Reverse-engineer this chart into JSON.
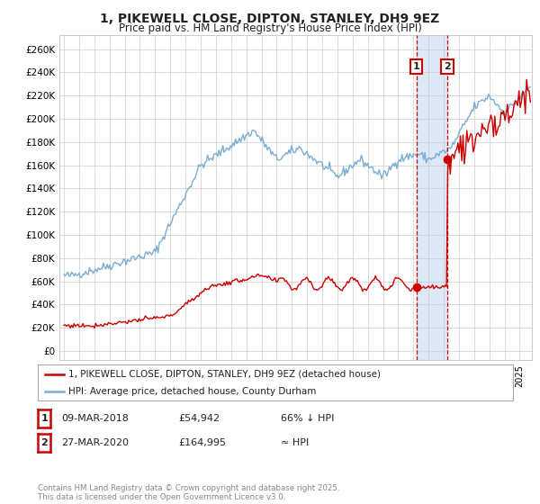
{
  "title": "1, PIKEWELL CLOSE, DIPTON, STANLEY, DH9 9EZ",
  "subtitle": "Price paid vs. HM Land Registry's House Price Index (HPI)",
  "title_fontsize": 10,
  "subtitle_fontsize": 8.5,
  "background_color": "#ffffff",
  "plot_bg_color": "#ffffff",
  "grid_color": "#cccccc",
  "hpi_color": "#7aadd4",
  "red_color": "#cc0000",
  "highlight_color": "#dce8f5",
  "sale1_date": 2018.19,
  "sale1_price": 54942,
  "sale1_label": "1",
  "sale2_date": 2020.23,
  "sale2_price": 164995,
  "sale2_label": "2",
  "yticks": [
    0,
    20000,
    40000,
    60000,
    80000,
    100000,
    120000,
    140000,
    160000,
    180000,
    200000,
    220000,
    240000,
    260000
  ],
  "ylim": [
    -8000,
    272000
  ],
  "xlim_start": 1994.7,
  "xlim_end": 2025.8,
  "legend_label1": "1, PIKEWELL CLOSE, DIPTON, STANLEY, DH9 9EZ (detached house)",
  "legend_label2": "HPI: Average price, detached house, County Durham",
  "table_row1": [
    "1",
    "09-MAR-2018",
    "£54,942",
    "66% ↓ HPI"
  ],
  "table_row2": [
    "2",
    "27-MAR-2020",
    "£164,995",
    "≈ HPI"
  ],
  "footer": "Contains HM Land Registry data © Crown copyright and database right 2025.\nThis data is licensed under the Open Government Licence v3.0."
}
